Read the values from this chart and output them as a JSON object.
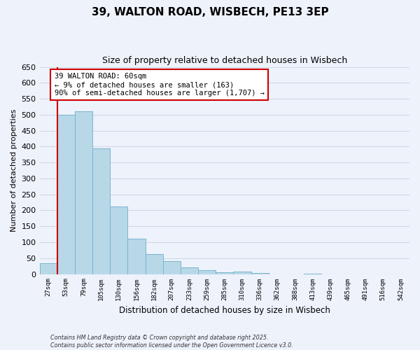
{
  "title": "39, WALTON ROAD, WISBECH, PE13 3EP",
  "subtitle": "Size of property relative to detached houses in Wisbech",
  "xlabel": "Distribution of detached houses by size in Wisbech",
  "ylabel": "Number of detached properties",
  "bin_labels": [
    "27sqm",
    "53sqm",
    "79sqm",
    "105sqm",
    "130sqm",
    "156sqm",
    "182sqm",
    "207sqm",
    "233sqm",
    "259sqm",
    "285sqm",
    "310sqm",
    "336sqm",
    "362sqm",
    "388sqm",
    "413sqm",
    "439sqm",
    "465sqm",
    "491sqm",
    "516sqm",
    "542sqm"
  ],
  "bar_heights": [
    35,
    500,
    510,
    395,
    213,
    112,
    63,
    40,
    20,
    12,
    5,
    8,
    3,
    0,
    0,
    1,
    0,
    0,
    0,
    0,
    0
  ],
  "bar_color": "#b8d8e8",
  "bar_edge_color": "#7ab4cc",
  "grid_color": "#d0d8e8",
  "background_color": "#eef2fb",
  "marker_color": "#cc0000",
  "ylim": [
    0,
    650
  ],
  "yticks": [
    0,
    50,
    100,
    150,
    200,
    250,
    300,
    350,
    400,
    450,
    500,
    550,
    600,
    650
  ],
  "annotation_line1": "39 WALTON ROAD: 60sqm",
  "annotation_line2": "← 9% of detached houses are smaller (163)",
  "annotation_line3": "90% of semi-detached houses are larger (1,707) →",
  "annotation_box_facecolor": "#ffffff",
  "annotation_box_edgecolor": "#cc0000",
  "footer_line1": "Contains HM Land Registry data © Crown copyright and database right 2025.",
  "footer_line2": "Contains public sector information licensed under the Open Government Licence v3.0."
}
